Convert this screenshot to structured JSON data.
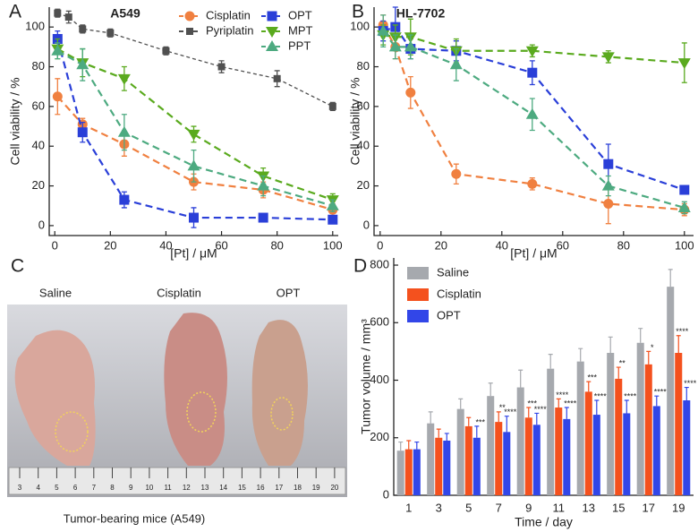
{
  "chart_data": [
    {
      "type": "line",
      "panel_label": "A",
      "title": "A549",
      "x_label": "[Pt] / μM",
      "y_label": "Cell viability / %",
      "xlim": [
        -2,
        102
      ],
      "ylim": [
        -5,
        110
      ],
      "xticks": [
        0,
        20,
        40,
        60,
        80,
        100
      ],
      "yticks": [
        0,
        20,
        40,
        60,
        80,
        100
      ],
      "legend": "upper right",
      "series": [
        {
          "name": "Cisplatin",
          "color": "#f08040",
          "marker": "circle",
          "x": [
            1,
            10,
            25,
            50,
            75,
            100
          ],
          "values": [
            65,
            51,
            41,
            22,
            18,
            8
          ],
          "errors": [
            9,
            3,
            6,
            4,
            4,
            3
          ]
        },
        {
          "name": "Pyriplatin",
          "color": "#505050",
          "marker": "square-small",
          "x": [
            1,
            5,
            10,
            20,
            40,
            60,
            80,
            100
          ],
          "values": [
            107,
            105,
            99,
            97,
            88,
            80,
            74,
            60
          ],
          "errors": [
            2,
            3,
            2,
            2,
            2,
            3,
            4,
            2
          ]
        },
        {
          "name": "OPT",
          "color": "#2a3fd8",
          "marker": "square",
          "x": [
            1,
            10,
            25,
            50,
            75,
            100
          ],
          "values": [
            94,
            47,
            13,
            4,
            4,
            3
          ],
          "errors": [
            4,
            5,
            4,
            5,
            2,
            2
          ]
        },
        {
          "name": "MPT",
          "color": "#5aaa1e",
          "marker": "triangle-down",
          "x": [
            1,
            10,
            25,
            50,
            75,
            100
          ],
          "values": [
            89,
            82,
            74,
            46,
            25,
            13
          ],
          "errors": [
            5,
            7,
            6,
            4,
            4,
            3
          ]
        },
        {
          "name": "PPT",
          "color": "#4daa80",
          "marker": "triangle-up",
          "x": [
            1,
            10,
            25,
            50,
            75,
            100
          ],
          "values": [
            88,
            81,
            47,
            30,
            20,
            10
          ],
          "errors": [
            4,
            8,
            9,
            8,
            5,
            3
          ]
        }
      ]
    },
    {
      "type": "line",
      "panel_label": "B",
      "title": "HL-7702",
      "x_label": "[Pt] / μM",
      "y_label": "Cell viability / %",
      "xlim": [
        -2,
        103
      ],
      "ylim": [
        -5,
        110
      ],
      "xticks": [
        0,
        20,
        40,
        60,
        80,
        100
      ],
      "yticks": [
        0,
        20,
        40,
        60,
        80,
        100
      ],
      "series": [
        {
          "color": "#f08040",
          "marker": "circle",
          "x": [
            1,
            5,
            10,
            25,
            50,
            75,
            100
          ],
          "values": [
            101,
            90,
            67,
            26,
            21,
            11,
            8
          ],
          "errors": [
            5,
            6,
            8,
            5,
            3,
            10,
            3
          ]
        },
        {
          "color": "#2a3fd8",
          "marker": "square",
          "x": [
            1,
            5,
            10,
            25,
            50,
            75,
            100
          ],
          "values": [
            98,
            100,
            89,
            88,
            77,
            31,
            18
          ],
          "errors": [
            5,
            10,
            5,
            5,
            6,
            10,
            2
          ]
        },
        {
          "color": "#5aaa1e",
          "marker": "triangle-down",
          "x": [
            1,
            5,
            10,
            25,
            50,
            75,
            100
          ],
          "values": [
            96,
            95,
            95,
            88,
            88,
            85,
            82
          ],
          "errors": [
            5,
            6,
            9,
            6,
            3,
            3,
            10
          ]
        },
        {
          "color": "#4daa80",
          "marker": "triangle-up",
          "x": [
            1,
            5,
            10,
            25,
            50,
            75,
            100
          ],
          "values": [
            98,
            90,
            90,
            81,
            56,
            20,
            9
          ],
          "errors": [
            8,
            6,
            6,
            8,
            8,
            5,
            3
          ]
        }
      ]
    },
    {
      "type": "bar",
      "panel_label": "D",
      "x_label": "Time / day",
      "y_label": "Tumor volume / mm³",
      "categories": [
        "1",
        "3",
        "5",
        "7",
        "9",
        "11",
        "13",
        "15",
        "17",
        "19"
      ],
      "ylim": [
        0,
        825
      ],
      "yticks": [
        0,
        200,
        400,
        600,
        800
      ],
      "legend": "upper left",
      "series": [
        {
          "name": "Saline",
          "color": "#a6a9ae",
          "values": [
            155,
            250,
            300,
            345,
            375,
            440,
            465,
            495,
            530,
            725
          ],
          "errors": [
            30,
            40,
            35,
            45,
            60,
            50,
            45,
            55,
            50,
            60
          ],
          "annotations": [
            null,
            null,
            null,
            null,
            null,
            null,
            null,
            null,
            null,
            null
          ]
        },
        {
          "name": "Cisplatin",
          "color": "#f4511e",
          "values": [
            160,
            200,
            240,
            255,
            270,
            305,
            360,
            405,
            455,
            495
          ],
          "errors": [
            30,
            30,
            30,
            35,
            35,
            30,
            35,
            40,
            45,
            60
          ],
          "annotations": [
            null,
            null,
            null,
            "**",
            "***",
            "****",
            "***",
            "**",
            "*",
            "****"
          ]
        },
        {
          "name": "OPT",
          "color": "#3246e8",
          "values": [
            160,
            190,
            200,
            220,
            245,
            265,
            280,
            285,
            310,
            330
          ],
          "errors": [
            25,
            25,
            40,
            55,
            40,
            40,
            50,
            45,
            35,
            45
          ],
          "annotations": [
            null,
            null,
            "***",
            "****",
            "****",
            "****",
            "****",
            "****",
            "****",
            "****"
          ]
        }
      ]
    }
  ],
  "photo_panel": {
    "panel_label": "C",
    "groups": [
      "Saline",
      "Cisplatin",
      "OPT"
    ],
    "caption": "Tumor-bearing mice (A549)",
    "ruler_labels": [
      "3",
      "4",
      "5",
      "6",
      "7",
      "8",
      "9",
      "10",
      "11",
      "12",
      "13",
      "14",
      "15",
      "16",
      "17",
      "18",
      "19",
      "20"
    ]
  }
}
